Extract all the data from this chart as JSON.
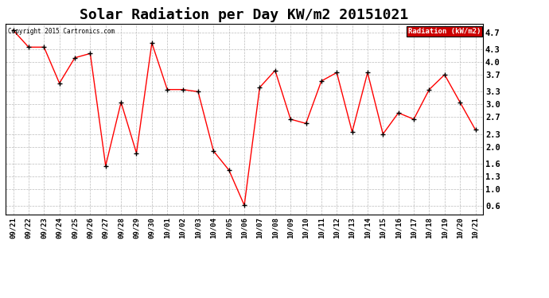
{
  "title": "Solar Radiation per Day KW/m2 20151021",
  "copyright_text": "Copyright 2015 Cartronics.com",
  "legend_label": "Radiation (kW/m2)",
  "dates": [
    "09/21",
    "09/22",
    "09/23",
    "09/24",
    "09/25",
    "09/26",
    "09/27",
    "09/28",
    "09/29",
    "09/30",
    "10/01",
    "10/02",
    "10/03",
    "10/04",
    "10/05",
    "10/06",
    "10/07",
    "10/08",
    "10/09",
    "10/10",
    "10/11",
    "10/12",
    "10/13",
    "10/14",
    "10/15",
    "10/16",
    "10/17",
    "10/18",
    "10/19",
    "10/20",
    "10/21"
  ],
  "values": [
    4.75,
    4.35,
    4.35,
    3.5,
    4.1,
    4.2,
    1.55,
    3.05,
    1.85,
    4.45,
    3.35,
    3.35,
    3.3,
    1.9,
    1.45,
    0.62,
    3.4,
    3.8,
    2.65,
    2.55,
    3.55,
    3.75,
    2.35,
    3.75,
    2.3,
    2.8,
    2.65,
    3.35,
    3.7,
    3.05,
    2.4
  ],
  "line_color": "red",
  "marker_color": "black",
  "background_color": "#ffffff",
  "grid_color": "#bbbbbb",
  "ylim": [
    0.4,
    4.9
  ],
  "yticks": [
    0.6,
    1.0,
    1.3,
    1.6,
    2.0,
    2.3,
    2.7,
    3.0,
    3.3,
    3.7,
    4.0,
    4.3,
    4.7
  ],
  "legend_bg": "#cc0000",
  "legend_text_color": "#ffffff",
  "title_fontsize": 13,
  "tick_fontsize": 6.5,
  "figsize": [
    6.9,
    3.75
  ],
  "dpi": 100
}
